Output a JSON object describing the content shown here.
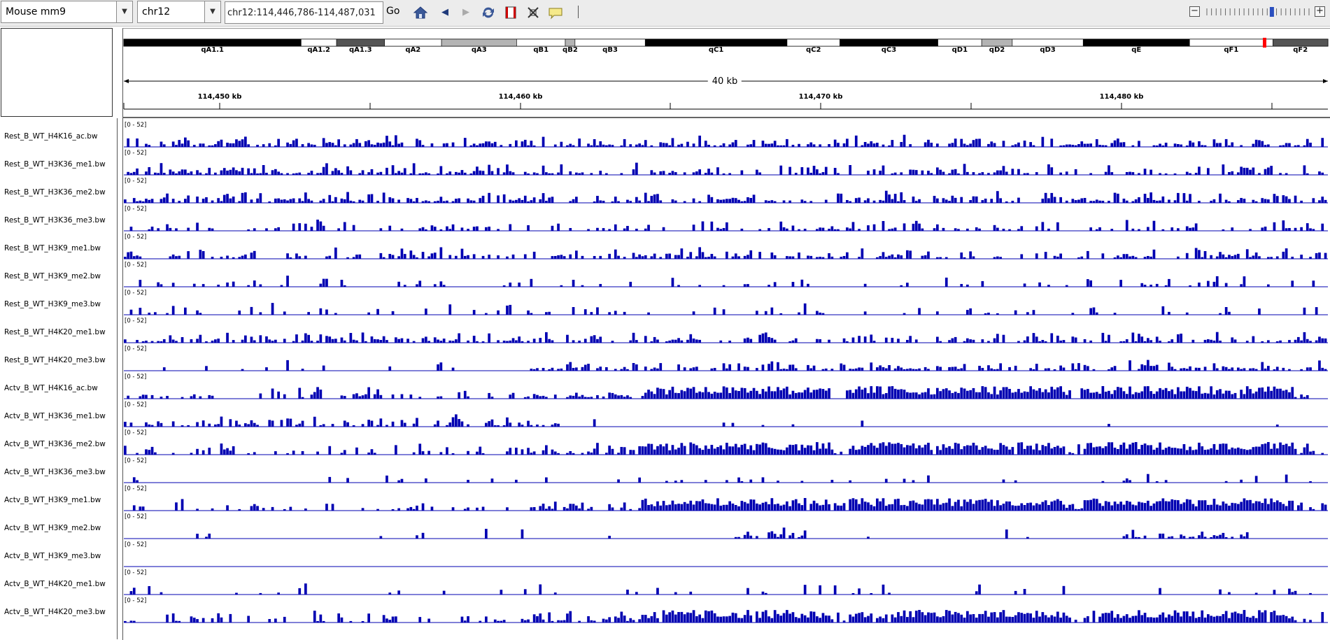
{
  "toolbar": {
    "genome": "Mouse mm9",
    "chromosome": "chr12",
    "locus": "chr12:114,446,786-114,487,031",
    "go_label": "Go",
    "zoom_minus": "−",
    "zoom_plus": "+",
    "zoom_level": 14,
    "zoom_steps": 23
  },
  "ideogram": {
    "bands": [
      {
        "name": "qA1.1",
        "stain": "black"
      },
      {
        "name": "qA1.2",
        "stain": "white"
      },
      {
        "name": "qA1.3",
        "stain": "dark"
      },
      {
        "name": "qA2",
        "stain": "white"
      },
      {
        "name": "qA3",
        "stain": "gray"
      },
      {
        "name": "qB1",
        "stain": "white"
      },
      {
        "name": "qB2",
        "stain": "gray"
      },
      {
        "name": "qB3",
        "stain": "white"
      },
      {
        "name": "qC1",
        "stain": "black"
      },
      {
        "name": "qC2",
        "stain": "white"
      },
      {
        "name": "qC3",
        "stain": "black"
      },
      {
        "name": "qD1",
        "stain": "white"
      },
      {
        "name": "qD2",
        "stain": "gray"
      },
      {
        "name": "qD3",
        "stain": "white"
      },
      {
        "name": "qE",
        "stain": "black"
      },
      {
        "name": "qF1",
        "stain": "white"
      },
      {
        "name": "qF2",
        "stain": "dark"
      }
    ]
  },
  "ruler": {
    "span_label": "40 kb",
    "ticks": [
      "114,450 kb",
      "114,460 kb",
      "114,470 kb",
      "114,480 kb"
    ]
  },
  "tracks": [
    {
      "name": "Rest_B_WT_H4K16_ac.bw",
      "range": "[0 - 52]",
      "profile": "hi"
    },
    {
      "name": "Rest_B_WT_H3K36_me1.bw",
      "range": "[0 - 52]",
      "profile": "early"
    },
    {
      "name": "Rest_B_WT_H3K36_me2.bw",
      "range": "[0 - 52]",
      "profile": "hi"
    },
    {
      "name": "Rest_B_WT_H3K36_me3.bw",
      "range": "[0 - 52]",
      "profile": "low"
    },
    {
      "name": "Rest_B_WT_H3K9_me1.bw",
      "range": "[0 - 52]",
      "profile": "mid"
    },
    {
      "name": "Rest_B_WT_H3K9_me2.bw",
      "range": "[0 - 52]",
      "profile": "sparse"
    },
    {
      "name": "Rest_B_WT_H3K9_me3.bw",
      "range": "[0 - 52]",
      "profile": "sparse"
    },
    {
      "name": "Rest_B_WT_H4K20_me1.bw",
      "range": "[0 - 52]",
      "profile": "mid"
    },
    {
      "name": "Rest_B_WT_H4K20_me3.bw",
      "range": "[0 - 52]",
      "profile": "late"
    },
    {
      "name": "Actv_B_WT_H4K16_ac.bw",
      "range": "[0 - 52]",
      "profile": "dense"
    },
    {
      "name": "Actv_B_WT_H3K36_me1.bw",
      "range": "[0 - 52]",
      "profile": "earlyonly"
    },
    {
      "name": "Actv_B_WT_H3K36_me2.bw",
      "range": "[0 - 52]",
      "profile": "dense"
    },
    {
      "name": "Actv_B_WT_H3K36_me3.bw",
      "range": "[0 - 52]",
      "profile": "verysparse"
    },
    {
      "name": "Actv_B_WT_H3K9_me1.bw",
      "range": "[0 - 52]",
      "profile": "dense"
    },
    {
      "name": "Actv_B_WT_H3K9_me2.bw",
      "range": "[0 - 52]",
      "profile": "patchy"
    },
    {
      "name": "Actv_B_WT_H3K9_me3.bw",
      "range": "[0 - 52]",
      "profile": "empty"
    },
    {
      "name": "Actv_B_WT_H4K20_me1.bw",
      "range": "[0 - 52]",
      "profile": "verysparse"
    },
    {
      "name": "Actv_B_WT_H4K20_me3.bw",
      "range": "[0 - 52]",
      "profile": "dense"
    }
  ],
  "colors": {
    "signal": "#0000b2",
    "baseline": "#0000b2",
    "ideo_black": "#000000",
    "ideo_dark": "#555555",
    "ideo_gray": "#b4b4b4",
    "current_region": "#ff0000"
  }
}
